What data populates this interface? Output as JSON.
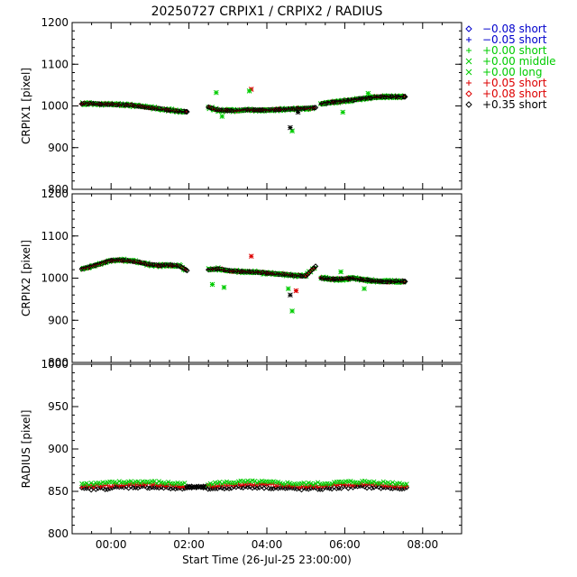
{
  "title": "20250727 CRPIX1 / CRPIX2 / RADIUS",
  "x_axis": {
    "label": "Start Time (26-Jul-25 23:00:00)",
    "range": [
      "23:00",
      "09:00"
    ],
    "ticks": [
      "00:00",
      "02:00",
      "04:00",
      "06:00",
      "08:00"
    ]
  },
  "legend": {
    "placement": "right",
    "entries": [
      {
        "marker": "diamond",
        "text": "−0.08 short",
        "color": "#0000cc"
      },
      {
        "marker": "plus",
        "text": "−0.05 short",
        "color": "#0000cc"
      },
      {
        "marker": "plus",
        "text": "+0.00 short",
        "color": "#00cc00"
      },
      {
        "marker": "cross",
        "text": "+0.00 middle",
        "color": "#00cc00"
      },
      {
        "marker": "cross",
        "text": "+0.00 long",
        "color": "#00cc00"
      },
      {
        "marker": "plus",
        "text": "+0.05 short",
        "color": "#dd0000"
      },
      {
        "marker": "diamond",
        "text": "+0.08 short",
        "color": "#dd0000"
      },
      {
        "marker": "diamond",
        "text": "+0.35 short",
        "color": "#000000"
      }
    ]
  },
  "chart_data": [
    {
      "type": "scatter",
      "ylabel": "CRPIX1 [pixel]",
      "ylim": [
        800,
        1200
      ],
      "yticks": [
        800,
        900,
        1000,
        1100,
        1200
      ],
      "x_unit": "hours after 00:00 on 27-Jul-25",
      "segments": [
        {
          "x": [
            -0.75,
            -0.5,
            -0.25,
            0.0,
            0.25,
            0.5,
            0.75,
            1.0,
            1.25,
            1.5,
            1.75,
            1.95
          ],
          "y": [
            1005,
            1006,
            1004,
            1004,
            1003,
            1002,
            999,
            996,
            993,
            990,
            987,
            986
          ]
        },
        {
          "x": [
            2.5,
            2.75,
            3.0,
            3.25,
            3.5,
            3.75,
            4.0,
            4.25,
            4.5,
            4.75,
            5.0,
            5.25
          ],
          "y": [
            997,
            990,
            989,
            989,
            991,
            990,
            990,
            991,
            992,
            993,
            994,
            996
          ]
        },
        {
          "x": [
            5.4,
            5.6,
            5.8,
            6.0,
            6.2,
            6.4,
            6.6,
            6.8,
            7.0,
            7.2,
            7.4,
            7.55
          ],
          "y": [
            1005,
            1008,
            1010,
            1012,
            1014,
            1017,
            1019,
            1021,
            1022,
            1022,
            1022,
            1022
          ]
        }
      ],
      "outliers": [
        {
          "x": 2.7,
          "y": 1032,
          "color": "#00cc00"
        },
        {
          "x": 3.6,
          "y": 1040,
          "color": "#dd0000"
        },
        {
          "x": 3.55,
          "y": 1036,
          "color": "#00cc00"
        },
        {
          "x": 4.65,
          "y": 940,
          "color": "#00cc00"
        },
        {
          "x": 4.6,
          "y": 948,
          "color": "#000000"
        },
        {
          "x": 4.8,
          "y": 985,
          "color": "#000000"
        },
        {
          "x": 2.85,
          "y": 975,
          "color": "#00cc00"
        },
        {
          "x": 6.6,
          "y": 1030,
          "color": "#00cc00"
        },
        {
          "x": 5.95,
          "y": 985,
          "color": "#00cc00"
        }
      ]
    },
    {
      "type": "scatter",
      "ylabel": "CRPIX2 [pixel]",
      "ylim": [
        800,
        1200
      ],
      "yticks": [
        800,
        900,
        1000,
        1100,
        1200
      ],
      "x_unit": "hours after 00:00 on 27-Jul-25",
      "segments": [
        {
          "x": [
            -0.75,
            -0.5,
            -0.25,
            0.0,
            0.25,
            0.5,
            0.75,
            1.0,
            1.25,
            1.5,
            1.75,
            1.95
          ],
          "y": [
            1022,
            1028,
            1035,
            1042,
            1043,
            1041,
            1037,
            1032,
            1030,
            1031,
            1029,
            1018
          ]
        },
        {
          "x": [
            2.5,
            2.75,
            3.0,
            3.25,
            3.5,
            3.75,
            4.0,
            4.25,
            4.5,
            4.75,
            5.0,
            5.25
          ],
          "y": [
            1020,
            1022,
            1018,
            1016,
            1015,
            1014,
            1012,
            1010,
            1008,
            1006,
            1005,
            1028
          ]
        },
        {
          "x": [
            5.4,
            5.6,
            5.8,
            6.0,
            6.2,
            6.4,
            6.6,
            6.8,
            7.0,
            7.2,
            7.4,
            7.55
          ],
          "y": [
            1000,
            998,
            997,
            998,
            1000,
            997,
            995,
            993,
            992,
            992,
            992,
            992
          ]
        }
      ],
      "outliers": [
        {
          "x": 2.6,
          "y": 985,
          "color": "#00cc00"
        },
        {
          "x": 3.6,
          "y": 1052,
          "color": "#dd0000"
        },
        {
          "x": 4.6,
          "y": 960,
          "color": "#000000"
        },
        {
          "x": 4.55,
          "y": 975,
          "color": "#00cc00"
        },
        {
          "x": 4.65,
          "y": 922,
          "color": "#00cc00"
        },
        {
          "x": 4.75,
          "y": 970,
          "color": "#dd0000"
        },
        {
          "x": 2.9,
          "y": 978,
          "color": "#00cc00"
        },
        {
          "x": 6.5,
          "y": 975,
          "color": "#00cc00"
        },
        {
          "x": 5.9,
          "y": 1015,
          "color": "#00cc00"
        }
      ]
    },
    {
      "type": "scatter",
      "ylabel": "RADIUS [pixel]",
      "ylim": [
        800,
        1000
      ],
      "yticks": [
        800,
        850,
        900,
        950,
        1000
      ],
      "x_unit": "hours after 00:00 on 27-Jul-25",
      "bands": [
        {
          "name": "+0.35 short",
          "color": "#000000",
          "y": 854
        },
        {
          "name": "+0.05 short",
          "color": "#dd0000",
          "y": 857
        },
        {
          "name": "+0.00",
          "color": "#00cc00",
          "y": 860
        }
      ],
      "x_start": -0.75,
      "x_end": 7.6
    }
  ]
}
